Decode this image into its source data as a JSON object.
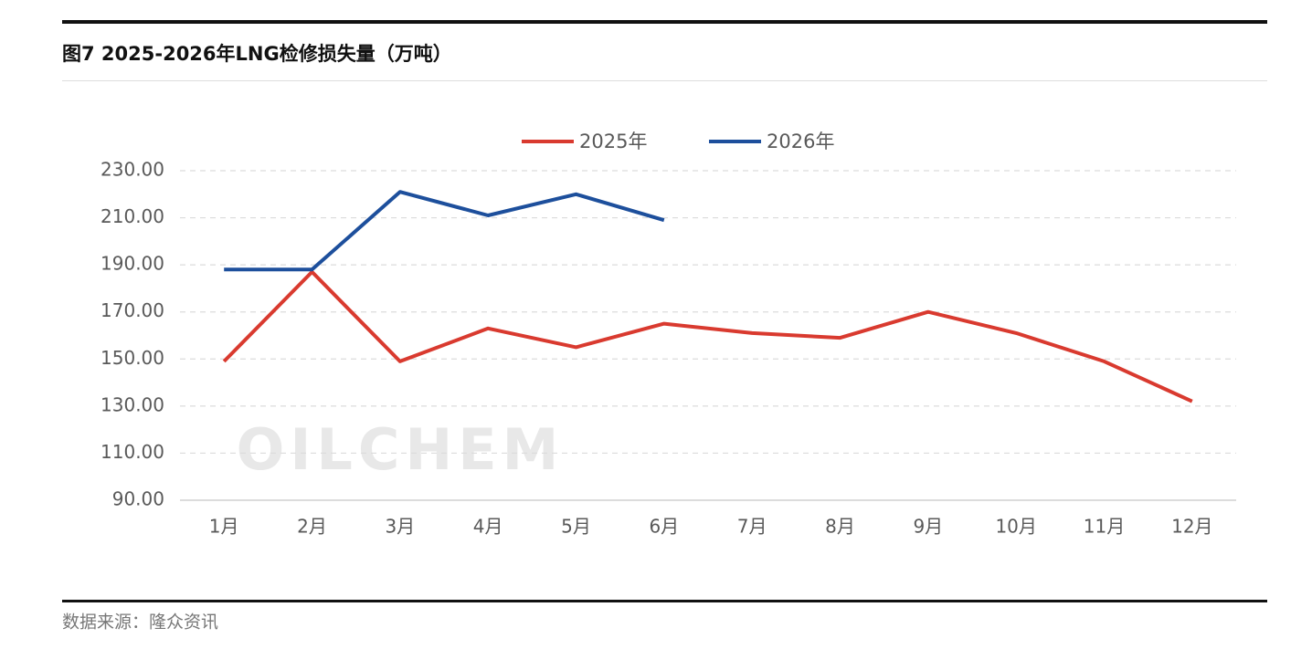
{
  "chart_data": {
    "type": "line",
    "title": "图7 2025-2026年LNG检修损失量（万吨）",
    "source": "数据来源：隆众资讯",
    "watermark": "OILCHEM",
    "categories": [
      "1月",
      "2月",
      "3月",
      "4月",
      "5月",
      "6月",
      "7月",
      "8月",
      "9月",
      "10月",
      "11月",
      "12月"
    ],
    "series": [
      {
        "name": "2025年",
        "color": "#d93a2f",
        "values": [
          149,
          187,
          149,
          163,
          155,
          165,
          161,
          159,
          170,
          161,
          149,
          132
        ]
      },
      {
        "name": "2026年",
        "color": "#1d4f9c",
        "values": [
          188,
          188,
          221,
          211,
          220,
          209,
          null,
          null,
          null,
          null,
          null,
          null
        ]
      }
    ],
    "ylim": [
      90,
      230
    ],
    "yticks": [
      {
        "value": 90,
        "label": "90.00"
      },
      {
        "value": 110,
        "label": "110.00"
      },
      {
        "value": 130,
        "label": "130.00"
      },
      {
        "value": 150,
        "label": "150.00"
      },
      {
        "value": 170,
        "label": "170.00"
      },
      {
        "value": 190,
        "label": "190.00"
      },
      {
        "value": 210,
        "label": "210.00"
      },
      {
        "value": 230,
        "label": "230.00"
      }
    ],
    "grid": true,
    "legend": "top"
  }
}
